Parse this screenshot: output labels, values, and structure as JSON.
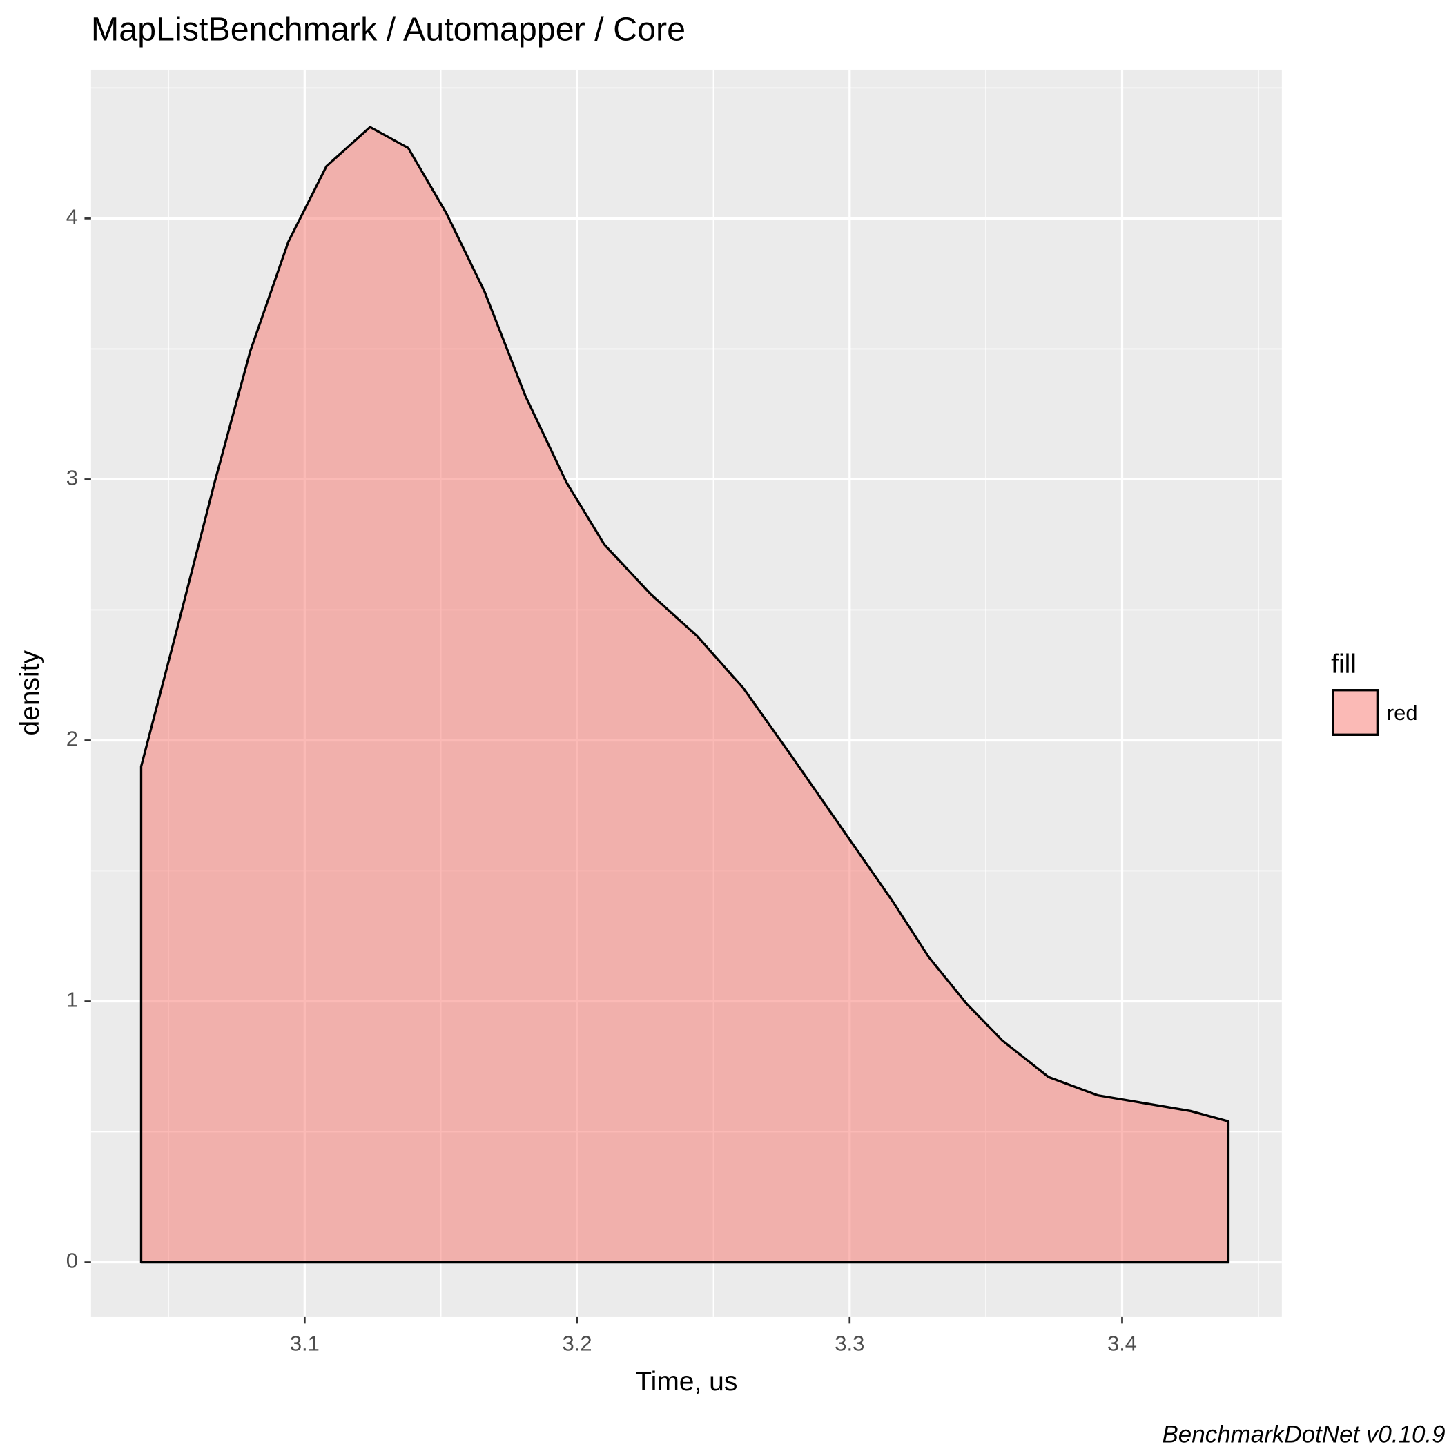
{
  "chart_data": {
    "type": "area",
    "title": "MapListBenchmark / Automapper / Core",
    "x_label": "Time, us",
    "y_label": "density",
    "caption": "BenchmarkDotNet v0.10.9",
    "legend_title": "fill",
    "legend_position": "right",
    "grid": true,
    "xlim": [
      3.0216,
      3.4586
    ],
    "ylim": [
      -0.21,
      4.57
    ],
    "xticks": [
      3.1,
      3.2,
      3.3,
      3.4
    ],
    "yticks": [
      0,
      1,
      2,
      3,
      4
    ],
    "minor_xticks": [
      3.05,
      3.15,
      3.25,
      3.35,
      3.45
    ],
    "minor_yticks": [
      0.5,
      1.5,
      2.5,
      3.5,
      4.5
    ],
    "x": [
      3.04,
      3.053,
      3.067,
      3.08,
      3.094,
      3.108,
      3.124,
      3.138,
      3.152,
      3.166,
      3.181,
      3.196,
      3.21,
      3.227,
      3.244,
      3.261,
      3.278,
      3.3,
      3.316,
      3.329,
      3.343,
      3.356,
      3.373,
      3.391,
      3.408,
      3.425,
      3.439
    ],
    "series": [
      {
        "name": "red",
        "color": "#F8766D",
        "values": [
          1.9,
          2.42,
          2.99,
          3.49,
          3.91,
          4.2,
          4.35,
          4.27,
          4.02,
          3.72,
          3.32,
          2.99,
          2.75,
          2.56,
          2.4,
          2.2,
          1.95,
          1.62,
          1.38,
          1.17,
          0.99,
          0.85,
          0.71,
          0.64,
          0.61,
          0.58,
          0.54
        ]
      }
    ]
  }
}
